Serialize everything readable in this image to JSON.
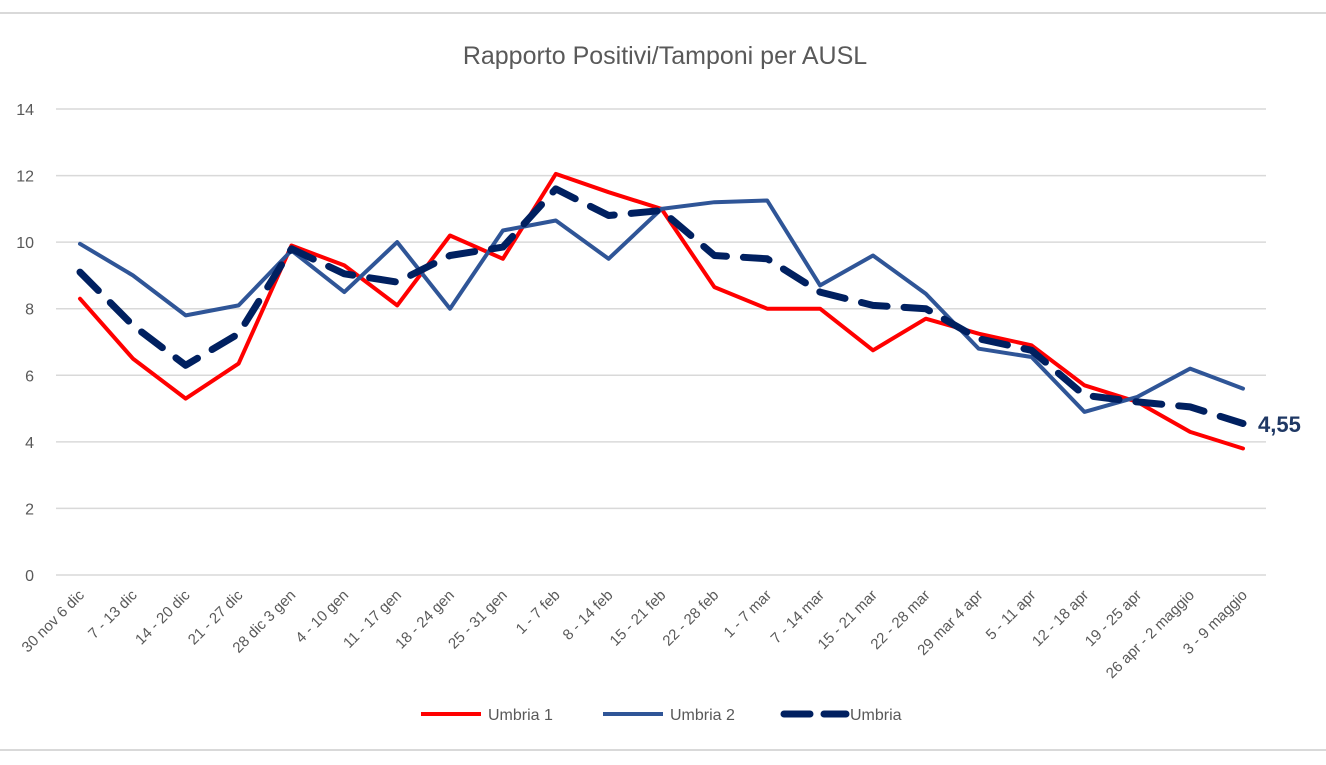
{
  "chart_data": {
    "type": "line",
    "title": "Rapporto Positivi/Tamponi per AUSL",
    "xlabel": "",
    "ylabel": "",
    "ylim": [
      0,
      14
    ],
    "yticks": [
      0,
      2,
      4,
      6,
      8,
      10,
      12,
      14
    ],
    "grid": true,
    "legend_position": "bottom",
    "categories": [
      "30 nov 6 dic",
      "7 - 13 dic",
      "14 - 20 dic",
      "21 - 27 dic",
      "28 dic 3 gen",
      "4 - 10 gen",
      "11 - 17 gen",
      "18 - 24 gen",
      "25 - 31 gen",
      "1 - 7 feb",
      "8 - 14 feb",
      "15 - 21 feb",
      "22 - 28 feb",
      "1 - 7 mar",
      "7 - 14 mar",
      "15 - 21 mar",
      "22 - 28 mar",
      "29 mar 4 apr",
      "5 - 11 apr",
      "12 - 18 apr",
      "19 - 25 apr",
      "26 apr - 2 maggio",
      "3 - 9 maggio"
    ],
    "series": [
      {
        "name": "Umbria 1",
        "color": "#ff0000",
        "style": "solid",
        "values": [
          8.3,
          6.5,
          5.3,
          6.35,
          9.9,
          9.3,
          8.1,
          10.2,
          9.5,
          12.05,
          11.5,
          11.0,
          8.65,
          8.0,
          8.0,
          6.75,
          7.7,
          7.25,
          6.9,
          5.7,
          5.2,
          4.3,
          3.8
        ]
      },
      {
        "name": "Umbria 2",
        "color": "#2f5597",
        "style": "solid",
        "values": [
          9.95,
          9.0,
          7.8,
          8.1,
          9.75,
          8.5,
          10.0,
          8.0,
          10.35,
          10.65,
          9.5,
          11.0,
          11.2,
          11.25,
          8.7,
          9.6,
          8.45,
          6.8,
          6.55,
          4.9,
          5.35,
          6.2,
          5.6
        ]
      },
      {
        "name": "Umbria",
        "color": "#002060",
        "style": "dashed",
        "values": [
          9.1,
          7.5,
          6.3,
          7.25,
          9.8,
          9.05,
          8.8,
          9.6,
          9.85,
          11.6,
          10.8,
          10.95,
          9.6,
          9.5,
          8.5,
          8.1,
          8.0,
          7.1,
          6.75,
          5.4,
          5.2,
          5.05,
          4.55
        ]
      }
    ],
    "annotation": {
      "text": "4,55",
      "series": "Umbria",
      "index": 22
    }
  }
}
